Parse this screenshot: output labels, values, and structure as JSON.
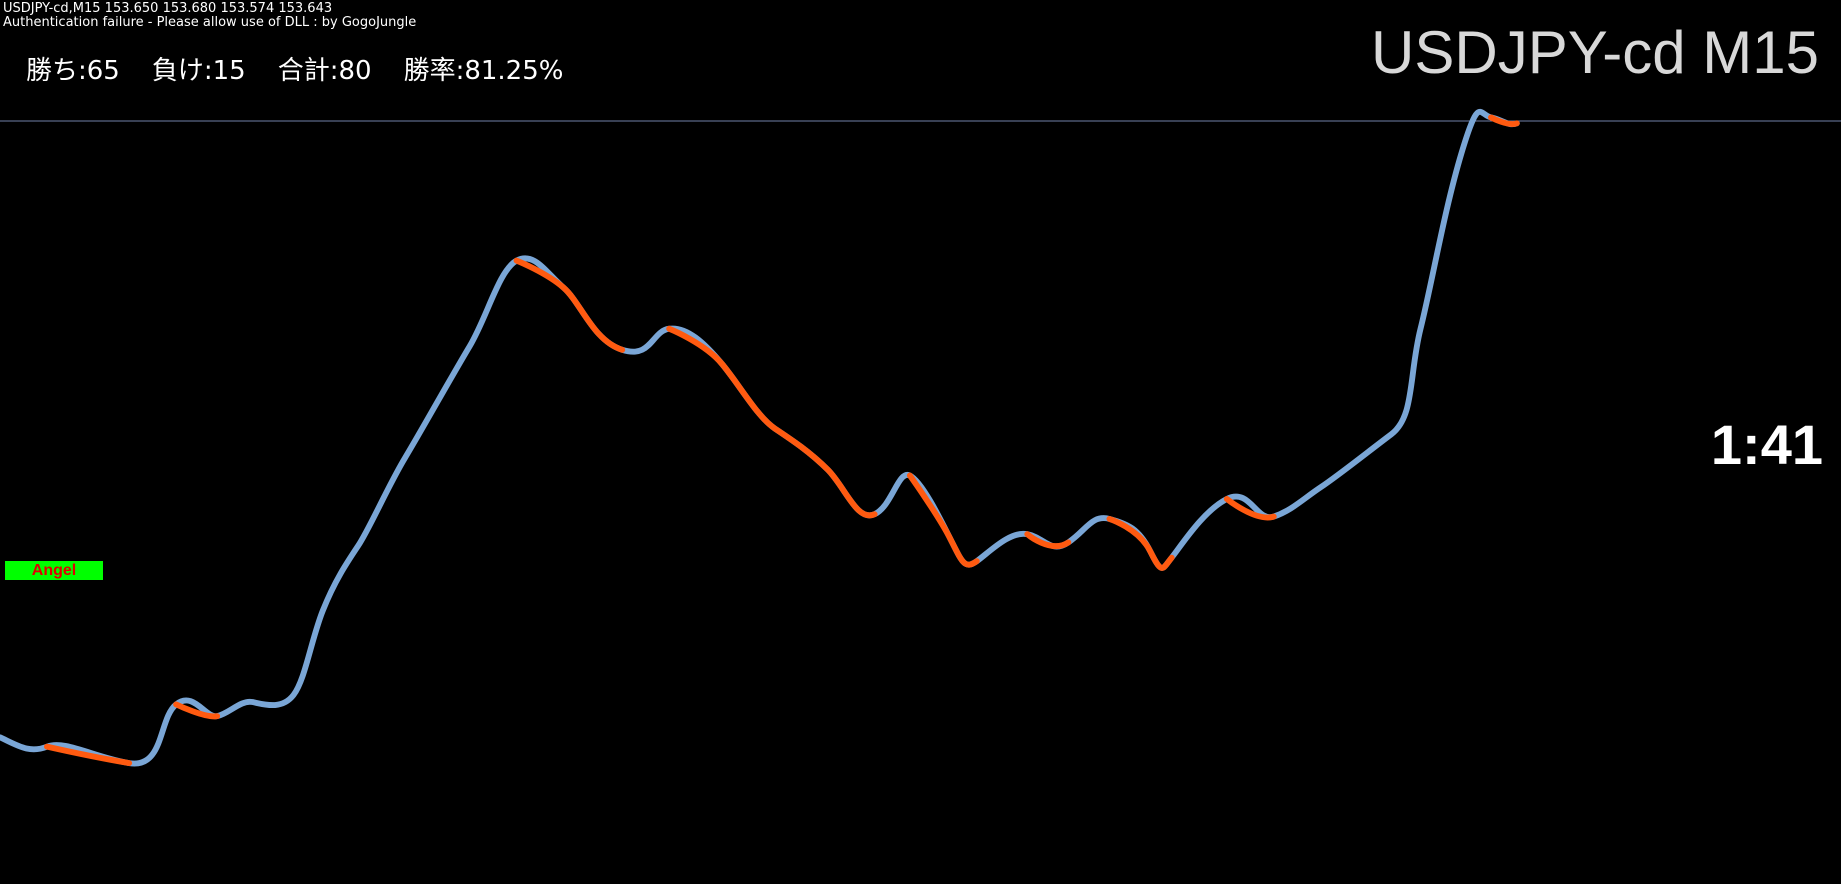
{
  "header": {
    "symbol_line": "USDJPY-cd,M15  153.650 153.680 153.574 153.643",
    "notice": "Authentication failure - Please allow use of DLL : by GogoJungle"
  },
  "stats": {
    "wins": "勝ち:65",
    "losses": "負け:15",
    "total": "合計:80",
    "win_rate": "勝率:81.25%"
  },
  "chart": {
    "title": "USDJPY-cd M15",
    "countdown": "1:41",
    "badge": "Angel"
  }
}
